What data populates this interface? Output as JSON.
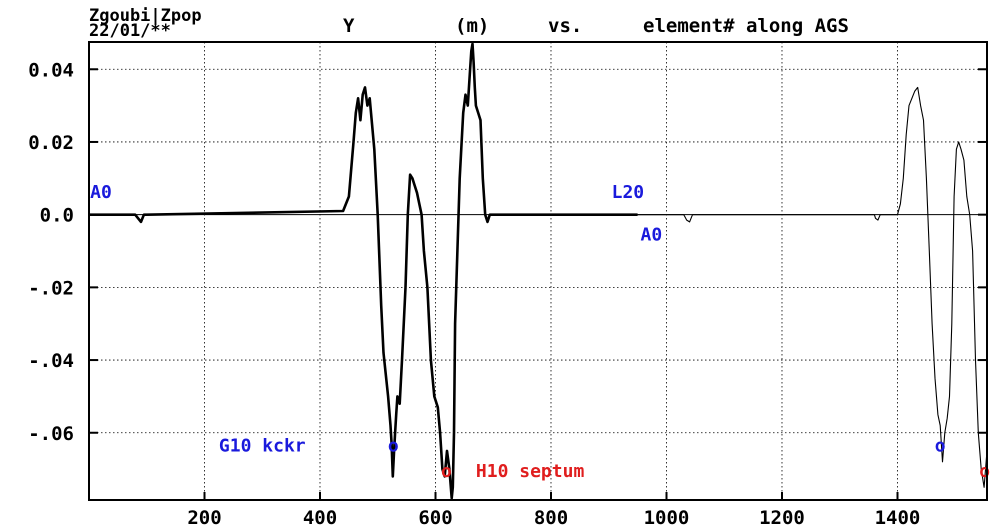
{
  "header": {
    "program": "Zgoubi|Zpop",
    "date": "22/01/**",
    "title_y": "Y",
    "title_unit": "(m)",
    "title_vs": "vs.",
    "title_rest": "element# along AGS"
  },
  "chart_data": {
    "type": "line",
    "xlim": [
      0,
      1555
    ],
    "ylim": [
      -0.0785,
      0.0475
    ],
    "x_ticks": [
      200,
      400,
      600,
      800,
      1000,
      1200,
      1400
    ],
    "x_tick_labels": [
      "200",
      "400",
      "600",
      "800",
      "1000",
      "1200",
      "1400"
    ],
    "y_ticks": [
      0.04,
      0.02,
      0.0,
      -0.02,
      -0.04,
      -0.06
    ],
    "y_tick_labels": [
      "0.04",
      "0.02",
      "0.0",
      "-.02",
      "-.04",
      "-.06"
    ],
    "grid": true,
    "colors": {
      "line": "#000000",
      "blue": "#1a1adc",
      "red": "#e01e1e"
    },
    "series": [
      {
        "style": "thick",
        "x": [
          0,
          80,
          90,
          95,
          100,
          440,
          450,
          458,
          462,
          466,
          470,
          474,
          478,
          482,
          486,
          490,
          494,
          500,
          506,
          510,
          514,
          518,
          522,
          524,
          526,
          528,
          530,
          532,
          534,
          538,
          542,
          548,
          552,
          556,
          560,
          564,
          568,
          572,
          576,
          580,
          586,
          592,
          598,
          604,
          608,
          612,
          616,
          620,
          624,
          628,
          630,
          632,
          634,
          638,
          642,
          648,
          652,
          656,
          660,
          662,
          664,
          666,
          668,
          670,
          674,
          678,
          682,
          686,
          690,
          694,
          700,
          940,
          950
        ],
        "y": [
          0.0,
          0.0,
          -0.002,
          0.0,
          0.0,
          0.001,
          0.005,
          0.02,
          0.028,
          0.032,
          0.026,
          0.033,
          0.035,
          0.03,
          0.032,
          0.025,
          0.018,
          0.0,
          -0.025,
          -0.038,
          -0.044,
          -0.05,
          -0.058,
          -0.063,
          -0.072,
          -0.066,
          -0.06,
          -0.055,
          -0.05,
          -0.052,
          -0.04,
          -0.02,
          0.0,
          0.011,
          0.01,
          0.008,
          0.006,
          0.003,
          0.0,
          -0.01,
          -0.02,
          -0.04,
          -0.05,
          -0.053,
          -0.06,
          -0.07,
          -0.072,
          -0.065,
          -0.07,
          -0.078,
          -0.075,
          -0.06,
          -0.03,
          -0.01,
          0.01,
          0.028,
          0.033,
          0.03,
          0.04,
          0.045,
          0.047,
          0.042,
          0.035,
          0.03,
          0.028,
          0.026,
          0.01,
          0.0,
          -0.002,
          0.0,
          0.0,
          0.0,
          0.0
        ]
      },
      {
        "style": "thin",
        "x": [
          950,
          1030,
          1035,
          1040,
          1045,
          1360,
          1362,
          1366,
          1370,
          1400,
          1405,
          1410,
          1415,
          1420,
          1425,
          1430,
          1435,
          1440,
          1445,
          1450,
          1455,
          1460,
          1465,
          1470,
          1474,
          1478,
          1482,
          1486,
          1490,
          1494,
          1498,
          1502,
          1506,
          1510,
          1515,
          1520,
          1525,
          1530,
          1535,
          1540,
          1545,
          1550,
          1555
        ],
        "y": [
          0.0,
          0.0,
          -0.0015,
          -0.002,
          0.0,
          0.0,
          -0.001,
          -0.0015,
          0.0,
          0.0,
          0.003,
          0.01,
          0.022,
          0.03,
          0.032,
          0.034,
          0.035,
          0.03,
          0.026,
          0.01,
          -0.01,
          -0.03,
          -0.045,
          -0.055,
          -0.058,
          -0.068,
          -0.06,
          -0.056,
          -0.05,
          -0.03,
          0.005,
          0.018,
          0.02,
          0.018,
          0.015,
          0.005,
          0.0,
          -0.01,
          -0.04,
          -0.06,
          -0.07,
          -0.075,
          -0.065
        ]
      }
    ],
    "annotations": [
      {
        "text": "A0",
        "x": 2,
        "y": 0.0062,
        "color": "blue"
      },
      {
        "text": "L20",
        "x": 905,
        "y": 0.0062,
        "color": "blue"
      },
      {
        "text": "A0",
        "x": 955,
        "y": -0.0055,
        "color": "blue"
      },
      {
        "text": "G10 kckr",
        "x": 225,
        "y": -0.0635,
        "color": "blue"
      },
      {
        "text": "H10 septum",
        "x": 670,
        "y": -0.0705,
        "color": "red"
      }
    ],
    "markers": [
      {
        "symbol": "o",
        "x": 527,
        "y": -0.0635,
        "color": "blue"
      },
      {
        "symbol": "o",
        "x": 619,
        "y": -0.0705,
        "color": "red"
      },
      {
        "symbol": "o",
        "x": 1474,
        "y": -0.0635,
        "color": "blue"
      },
      {
        "symbol": "o",
        "x": 1551,
        "y": -0.0705,
        "color": "red"
      }
    ]
  }
}
